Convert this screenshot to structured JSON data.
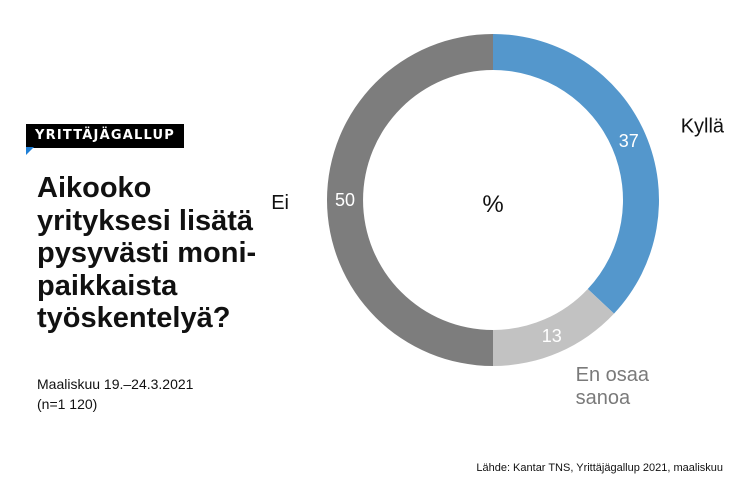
{
  "badge": "YRITTÄJÄGALLUP",
  "question_lines": [
    "Aikooko",
    "yrityksesi lisätä",
    "pysyvästi moni-",
    "paikkaista",
    "työskentelyä?"
  ],
  "period": "Maaliskuu 19.–24.3.2021",
  "sample": "(n=1 120)",
  "source": "Lähde: Kantar TNS, Yrittäjägallup 2021, maaliskuu",
  "chart_data": {
    "type": "pie",
    "donut": true,
    "center_label": "%",
    "unit": "%",
    "slices": [
      {
        "label": "Kyllä",
        "value": 37,
        "color": "#5497cc",
        "label_lines": [
          "Kyllä"
        ],
        "label_color": "#111111"
      },
      {
        "label": "En osaa sanoa",
        "value": 13,
        "color": "#c2c2c2",
        "label_lines": [
          "En osaa",
          "sanoa"
        ],
        "label_color": "#7a7a7a"
      },
      {
        "label": "Ei",
        "value": 50,
        "color": "#7d7d7d",
        "label_lines": [
          "Ei"
        ],
        "label_color": "#111111"
      }
    ],
    "value_label_color": "#ffffff",
    "legend": "none"
  }
}
